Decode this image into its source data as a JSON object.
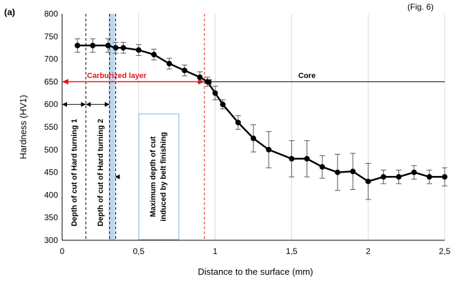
{
  "panel_label": "(a)",
  "header_fragment": "(Fig. 6)",
  "chart_data": {
    "type": "line",
    "xlabel": "Distance to the surface (mm)",
    "ylabel": "Hardness (HV1)",
    "xlim": [
      0,
      2.5
    ],
    "ylim": [
      300,
      800
    ],
    "x_ticks": [
      0,
      0.5,
      1,
      1.5,
      2,
      2.5
    ],
    "x_tick_labels": [
      "0",
      "0,5",
      "1",
      "1,5",
      "2",
      "2,5"
    ],
    "y_ticks": [
      300,
      350,
      400,
      450,
      500,
      550,
      600,
      650,
      700,
      750,
      800
    ],
    "y_tick_labels": [
      "300",
      "350",
      "400",
      "450",
      "500",
      "550",
      "600",
      "650",
      "700",
      "750",
      "800"
    ],
    "grid": {
      "vertical": true,
      "horizontal": false
    },
    "series": [
      {
        "x": [
          0.1,
          0.2,
          0.3,
          0.35,
          0.4,
          0.5,
          0.6,
          0.7,
          0.8,
          0.9,
          0.95,
          1.0,
          1.05,
          1.15,
          1.25,
          1.35,
          1.5,
          1.6,
          1.7,
          1.8,
          1.9,
          2.0,
          2.1,
          2.2,
          2.3,
          2.4,
          2.5
        ],
        "y": [
          730,
          730,
          730,
          725,
          725,
          720,
          710,
          690,
          675,
          660,
          650,
          625,
          600,
          560,
          525,
          500,
          480,
          480,
          462,
          450,
          452,
          430,
          440,
          440,
          450,
          440,
          440
        ],
        "err": [
          15,
          15,
          15,
          12,
          12,
          12,
          12,
          12,
          12,
          12,
          10,
          15,
          10,
          15,
          30,
          40,
          40,
          40,
          25,
          40,
          40,
          40,
          15,
          15,
          15,
          15,
          20
        ]
      }
    ],
    "vertical_lines": [
      {
        "x": 0.155,
        "style": "black-dashed"
      },
      {
        "x": 0.31,
        "style": "black-dashed"
      },
      {
        "x": 0.35,
        "style": "black-dashed"
      },
      {
        "x": 0.93,
        "style": "red-dashed"
      }
    ],
    "shaded_band": {
      "x0": 0.305,
      "x1": 0.345,
      "color": "#bdd7ee"
    },
    "annotations": {
      "carburized": "Carburized layer",
      "core": "Core",
      "hard_turning_1": "Depth of cut of Hard turning 1",
      "hard_turning_2": "Depth of cut of Hard turning 2",
      "belt_line1": "Maximum depth of cut",
      "belt_line2": "induced by belt finishing"
    },
    "colors": {
      "series": "#000000",
      "accent": "#e8141b",
      "band": "#bdd7ee",
      "box_border": "#7fb4d6"
    }
  }
}
